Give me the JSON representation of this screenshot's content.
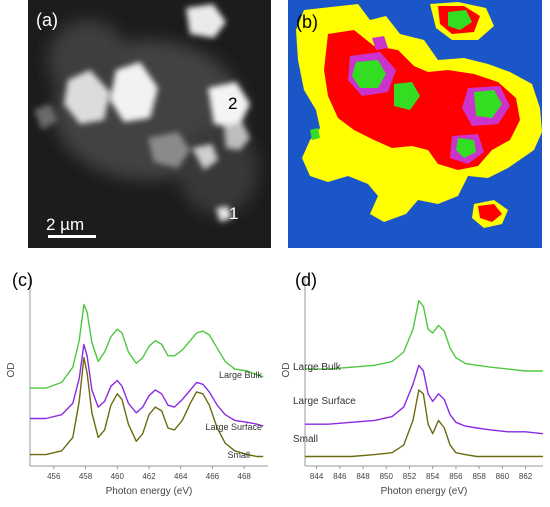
{
  "figure": {
    "panel_a": {
      "label": "(a)",
      "scale_bar": "2 µm",
      "markers": [
        "1",
        "2"
      ]
    },
    "panel_b": {
      "label": "(b)",
      "colors": {
        "background": "#1a56c8",
        "yellow": "#ffff00",
        "red": "#ff0000",
        "magenta": "#cc33cc",
        "green": "#33dd22"
      }
    },
    "panel_c": {
      "label": "(c)"
    },
    "panel_d": {
      "label": "(d)"
    }
  },
  "chart_data": [
    {
      "type": "line",
      "panel": "c",
      "xlabel": "Photon energy (eV)",
      "ylabel": "OD",
      "xlim": [
        454.5,
        469.5
      ],
      "ylim": [
        0,
        1.0
      ],
      "xticks": [
        456,
        458,
        460,
        462,
        464,
        466,
        468
      ],
      "series": [
        {
          "name": "Large Bulk",
          "color": "#4dc840",
          "x": [
            454.5,
            455.5,
            456.5,
            457.2,
            457.6,
            457.9,
            458.1,
            458.4,
            458.8,
            459.2,
            459.6,
            460.0,
            460.3,
            460.7,
            461.2,
            461.6,
            462.0,
            462.4,
            462.8,
            463.2,
            463.6,
            464.1,
            464.6,
            465.0,
            465.4,
            465.8,
            466.3,
            466.8,
            467.4,
            468.2,
            468.8,
            469.2
          ],
          "y": [
            0.41,
            0.41,
            0.44,
            0.52,
            0.66,
            0.85,
            0.81,
            0.65,
            0.55,
            0.6,
            0.68,
            0.72,
            0.7,
            0.6,
            0.54,
            0.57,
            0.63,
            0.66,
            0.64,
            0.58,
            0.58,
            0.61,
            0.66,
            0.7,
            0.71,
            0.69,
            0.62,
            0.55,
            0.51,
            0.5,
            0.48,
            0.47
          ]
        },
        {
          "name": "Large Surface",
          "color": "#8a2be2",
          "x": [
            454.5,
            455.5,
            456.5,
            457.2,
            457.6,
            457.9,
            458.1,
            458.4,
            458.8,
            459.2,
            459.6,
            460.0,
            460.3,
            460.7,
            461.2,
            461.6,
            462.0,
            462.4,
            462.8,
            463.2,
            463.6,
            464.1,
            464.6,
            465.0,
            465.4,
            465.8,
            466.3,
            466.8,
            467.4,
            468.2,
            468.8,
            469.2
          ],
          "y": [
            0.25,
            0.25,
            0.27,
            0.33,
            0.46,
            0.64,
            0.58,
            0.4,
            0.31,
            0.34,
            0.42,
            0.45,
            0.42,
            0.33,
            0.28,
            0.31,
            0.37,
            0.4,
            0.38,
            0.32,
            0.31,
            0.35,
            0.4,
            0.44,
            0.43,
            0.39,
            0.32,
            0.27,
            0.24,
            0.23,
            0.22,
            0.21
          ]
        },
        {
          "name": "Small",
          "color": "#6b6b10",
          "x": [
            454.5,
            455.5,
            456.5,
            457.2,
            457.6,
            457.9,
            458.1,
            458.4,
            458.8,
            459.2,
            459.6,
            460.0,
            460.3,
            460.7,
            461.2,
            461.6,
            462.0,
            462.4,
            462.8,
            463.2,
            463.6,
            464.1,
            464.6,
            465.0,
            465.4,
            465.8,
            466.3,
            466.8,
            467.4,
            468.2,
            468.8,
            469.2
          ],
          "y": [
            0.06,
            0.06,
            0.08,
            0.15,
            0.34,
            0.57,
            0.49,
            0.28,
            0.15,
            0.19,
            0.32,
            0.38,
            0.35,
            0.22,
            0.13,
            0.17,
            0.27,
            0.31,
            0.29,
            0.2,
            0.19,
            0.24,
            0.33,
            0.39,
            0.38,
            0.32,
            0.2,
            0.12,
            0.08,
            0.06,
            0.05,
            0.05
          ]
        }
      ]
    },
    {
      "type": "line",
      "panel": "d",
      "xlabel": "Photon energy (eV)",
      "ylabel": "OD",
      "xlim": [
        843,
        863.5
      ],
      "ylim": [
        0,
        1.0
      ],
      "xticks": [
        844,
        846,
        848,
        850,
        852,
        854,
        856,
        858,
        860,
        862
      ],
      "series": [
        {
          "name": "Large Bulk",
          "color": "#4dc840",
          "x": [
            843,
            845,
            847,
            849,
            850.5,
            851.5,
            852.3,
            852.8,
            853.2,
            853.6,
            854.0,
            854.5,
            855.0,
            855.5,
            856.0,
            856.8,
            857.8,
            859,
            860.5,
            862,
            863.5
          ],
          "y": [
            0.51,
            0.51,
            0.52,
            0.53,
            0.55,
            0.6,
            0.72,
            0.87,
            0.84,
            0.72,
            0.7,
            0.74,
            0.71,
            0.62,
            0.57,
            0.54,
            0.53,
            0.52,
            0.51,
            0.5,
            0.5
          ]
        },
        {
          "name": "Large Surface",
          "color": "#8a2be2",
          "x": [
            843,
            845,
            847,
            849,
            850.5,
            851.5,
            852.3,
            852.8,
            853.2,
            853.6,
            854.0,
            854.5,
            855.0,
            855.5,
            856.0,
            856.8,
            857.8,
            859,
            860.5,
            862,
            863.5
          ],
          "y": [
            0.22,
            0.22,
            0.23,
            0.24,
            0.26,
            0.31,
            0.43,
            0.53,
            0.5,
            0.38,
            0.34,
            0.38,
            0.35,
            0.27,
            0.23,
            0.21,
            0.2,
            0.19,
            0.18,
            0.18,
            0.17
          ]
        },
        {
          "name": "Small",
          "color": "#6b6b10",
          "x": [
            843,
            845,
            847,
            849,
            850.5,
            851.5,
            852.3,
            852.8,
            853.2,
            853.6,
            854.0,
            854.5,
            855.0,
            855.5,
            856.0,
            856.8,
            857.8,
            859,
            860.5,
            862,
            863.5
          ],
          "y": [
            0.05,
            0.05,
            0.05,
            0.06,
            0.07,
            0.11,
            0.24,
            0.4,
            0.38,
            0.22,
            0.17,
            0.24,
            0.2,
            0.11,
            0.07,
            0.06,
            0.05,
            0.05,
            0.05,
            0.05,
            0.05
          ]
        }
      ]
    }
  ]
}
